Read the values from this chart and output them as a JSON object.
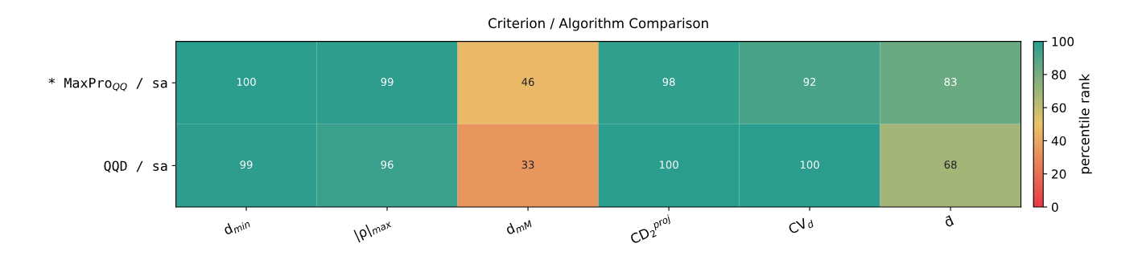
{
  "chart_data": {
    "type": "heatmap",
    "title": "Criterion / Algorithm Comparison",
    "categories": [
      "d$_{min}$",
      "|ρ|$_{max}$",
      "d$_{mM}$",
      "CD$_{2}$$^{proj}$",
      "CV$_{d}$",
      "d̄"
    ],
    "y_categories": [
      "* MaxPro$_{QQ}$ / sa",
      "QQD / sa"
    ],
    "cells": [
      [
        100,
        99,
        46,
        98,
        92,
        83
      ],
      [
        99,
        96,
        33,
        100,
        100,
        68
      ]
    ],
    "data_labels": true,
    "clabel": "percentile rank",
    "clim": [
      0,
      100
    ],
    "cticks": [
      0,
      20,
      40,
      60,
      80,
      100
    ]
  }
}
